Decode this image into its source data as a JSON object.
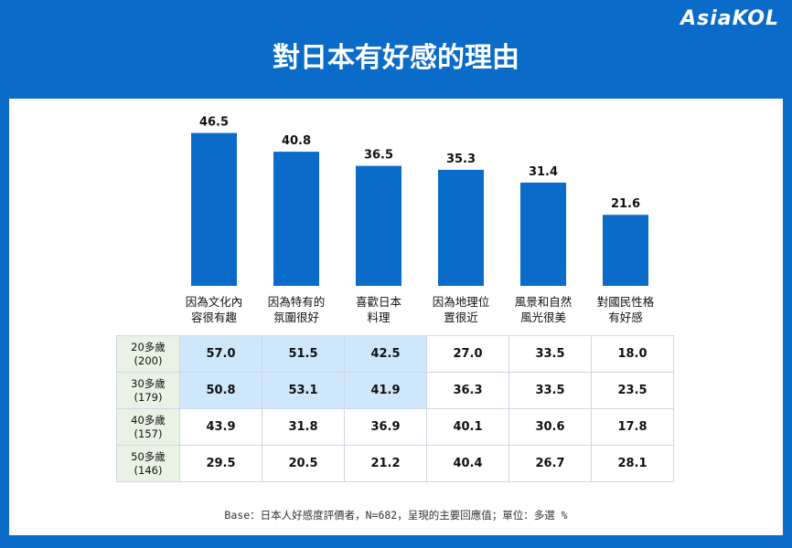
{
  "brand": "AsiaKOL",
  "title": "對日本有好感的理由",
  "chart_data": {
    "type": "bar",
    "title": "對日本有好感的理由",
    "categories": [
      [
        "因為文化內",
        "容很有趣"
      ],
      [
        "因為特有的",
        "氛圍很好"
      ],
      [
        "喜歡日本",
        "料理"
      ],
      [
        "因為地理位",
        "置很近"
      ],
      [
        "風景和自然",
        "風光很美"
      ],
      [
        "對國民性格",
        "有好感"
      ]
    ],
    "values": [
      46.5,
      40.8,
      36.5,
      35.3,
      31.4,
      21.6
    ],
    "value_labels": [
      "46.5",
      "40.8",
      "36.5",
      "35.3",
      "31.4",
      "21.6"
    ],
    "ylim": [
      0,
      50
    ],
    "xlabel": "",
    "ylabel": "",
    "grid": false,
    "bar_color": "#0a6cc8"
  },
  "table": {
    "rows": [
      {
        "label": [
          "20多歲",
          "(200)"
        ],
        "values": [
          "57.0",
          "51.5",
          "42.5",
          "27.0",
          "33.5",
          "18.0"
        ],
        "highlight": [
          true,
          true,
          true,
          false,
          false,
          false
        ]
      },
      {
        "label": [
          "30多歲",
          "(179)"
        ],
        "values": [
          "50.8",
          "53.1",
          "41.9",
          "36.3",
          "33.5",
          "23.5"
        ],
        "highlight": [
          true,
          true,
          true,
          false,
          false,
          false
        ]
      },
      {
        "label": [
          "40多歲",
          "(157)"
        ],
        "values": [
          "43.9",
          "31.8",
          "36.9",
          "40.1",
          "30.6",
          "17.8"
        ],
        "highlight": [
          false,
          false,
          false,
          false,
          false,
          false
        ]
      },
      {
        "label": [
          "50多歲",
          "(146)"
        ],
        "values": [
          "29.5",
          "20.5",
          "21.2",
          "40.4",
          "26.7",
          "28.1"
        ],
        "highlight": [
          false,
          false,
          false,
          false,
          false,
          false
        ]
      }
    ],
    "highlight_color": "#cfe7fb",
    "row_head_color": "#e9f2e4"
  },
  "footnote": "Base：日本人好感度評價者，N=682，呈現的主要回應值；單位：多選 %"
}
